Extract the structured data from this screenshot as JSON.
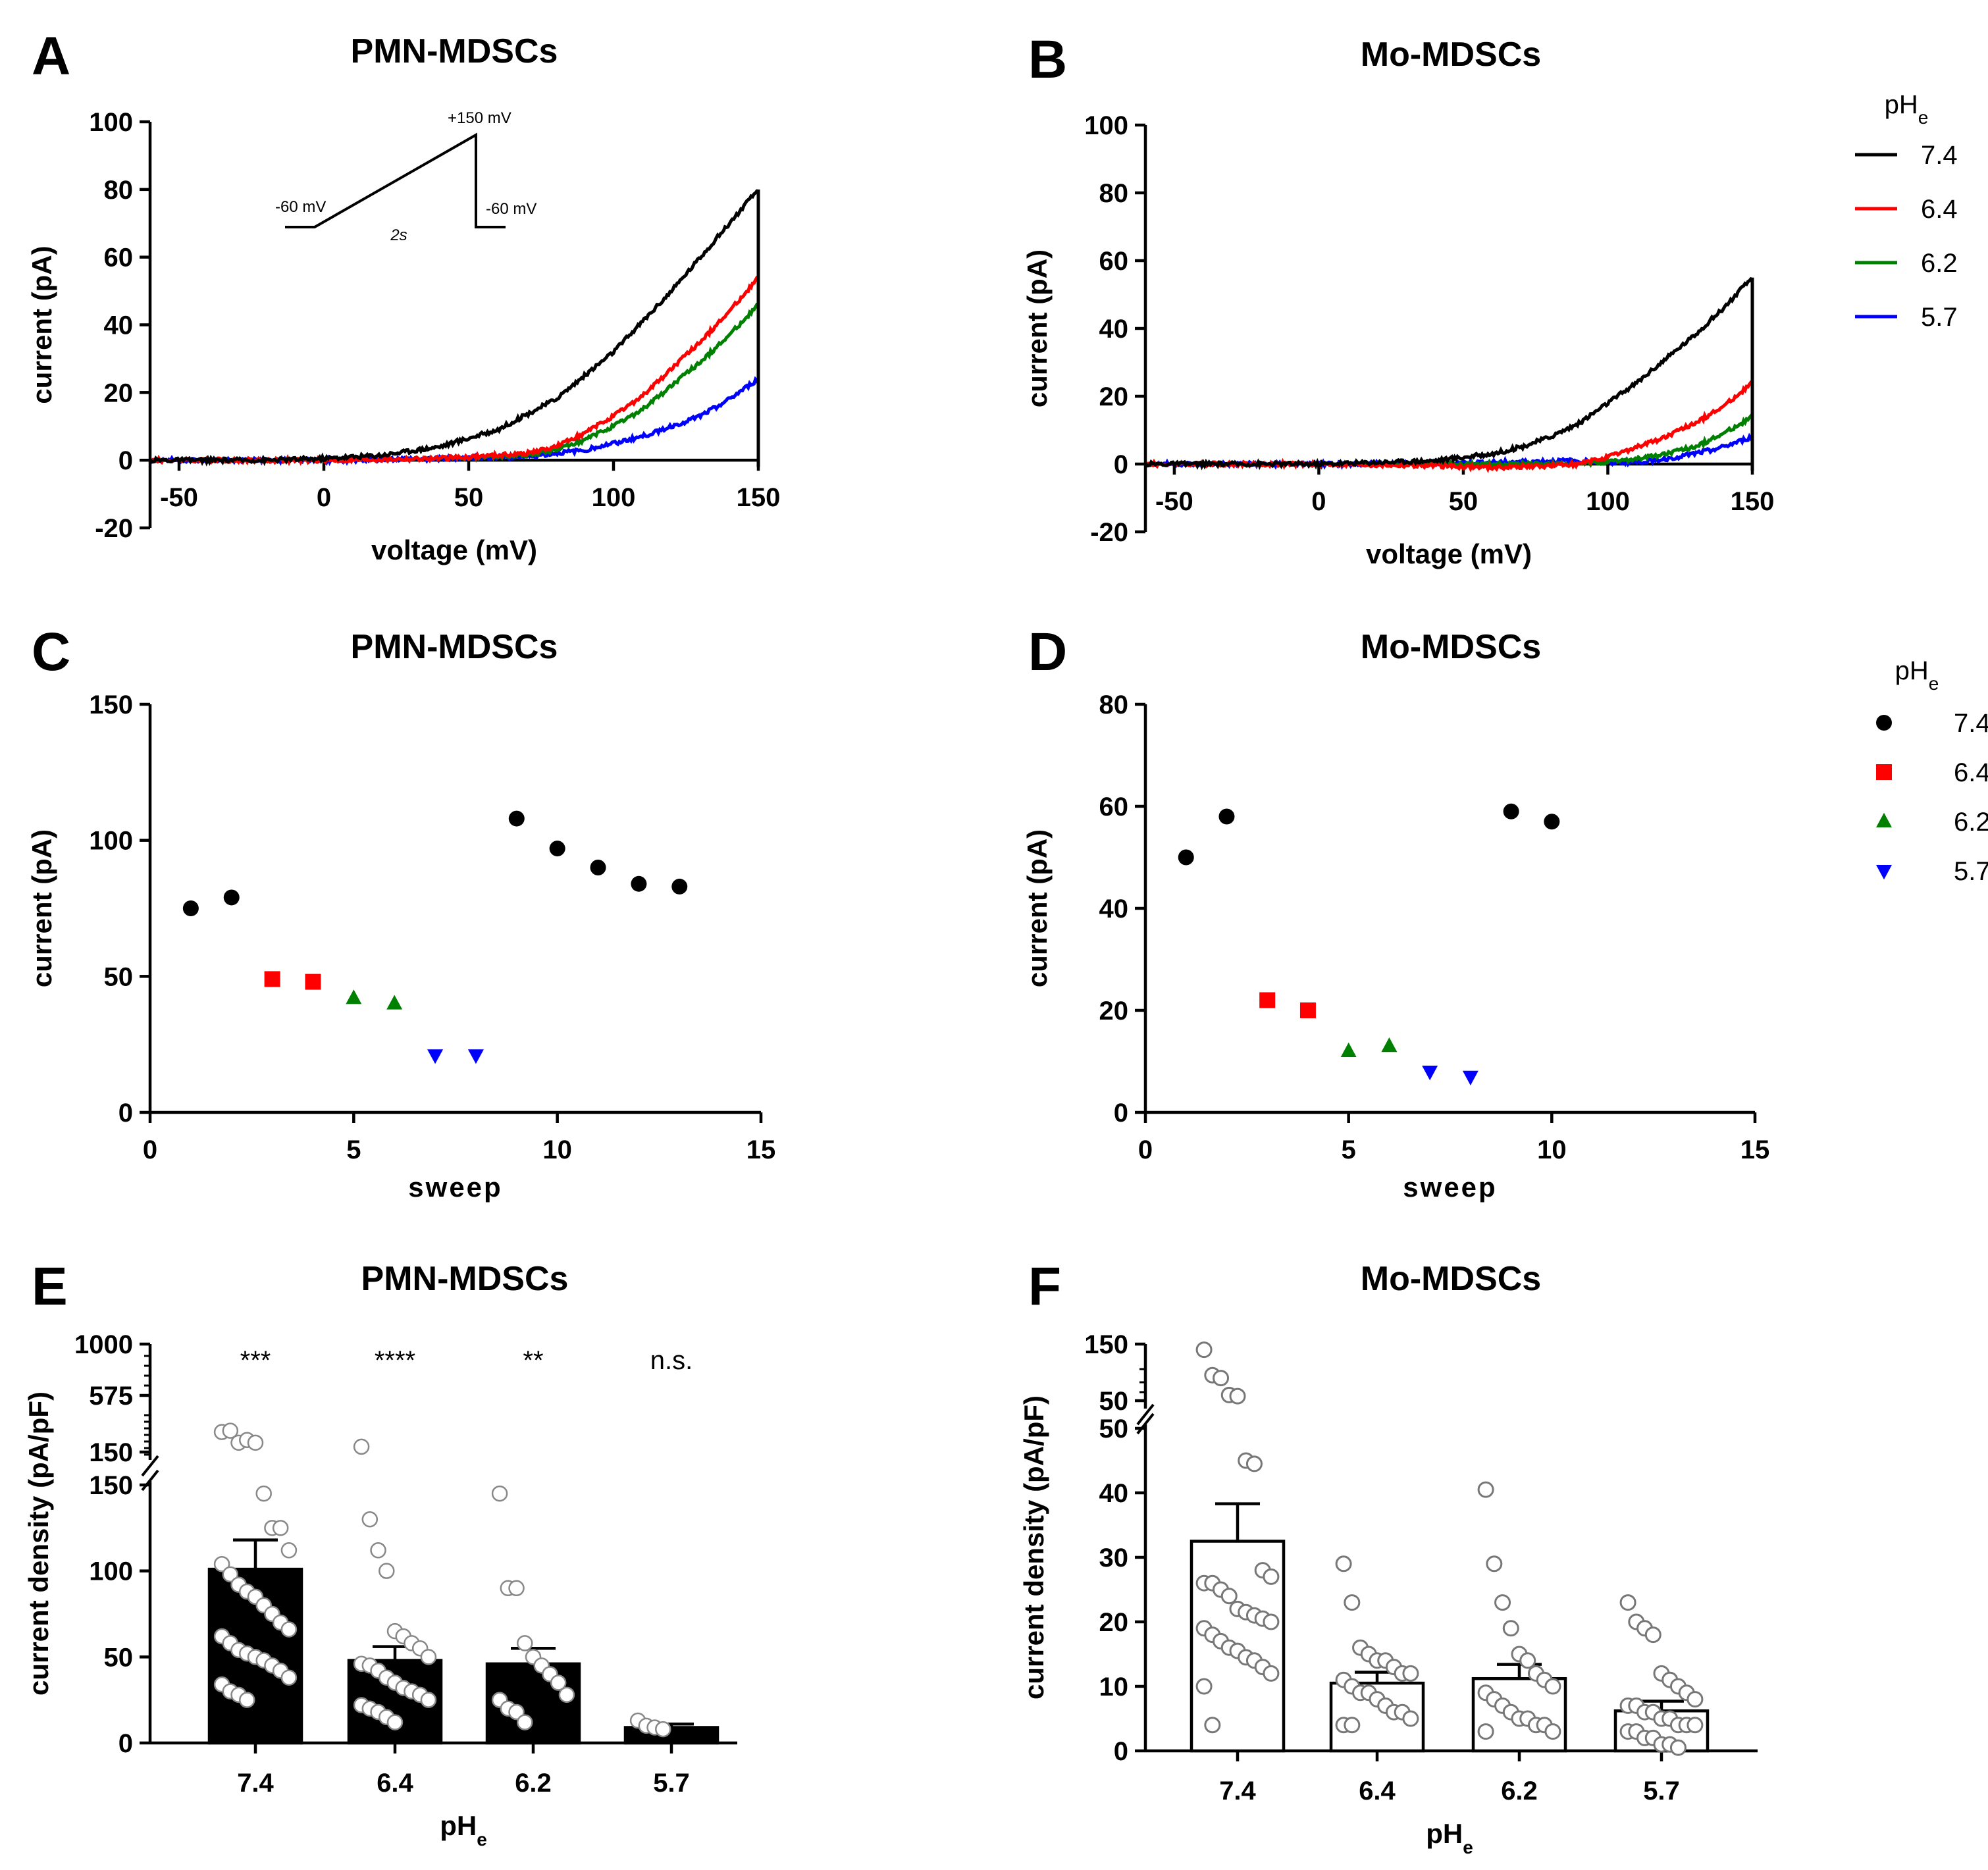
{
  "chart_data": [
    {
      "panel": "A",
      "type": "line",
      "title": "PMN-MDSCs",
      "xlabel": "voltage (mV)",
      "ylabel": "current (pA)",
      "xlim": [
        -60,
        150
      ],
      "ylim": [
        -20,
        100
      ],
      "xticks": [
        "-50",
        "0",
        "50",
        "100",
        "150"
      ],
      "yticks": [
        "-20",
        "0",
        "20",
        "40",
        "60",
        "80",
        "100"
      ],
      "inset": {
        "hold1": "-60 mV",
        "peak": "+150 mV",
        "hold2": "-60 mV",
        "duration": "2s"
      },
      "series": [
        {
          "name": "7.4",
          "color": "#000000",
          "x": [
            -60,
            -20,
            0,
            20,
            40,
            60,
            80,
            100,
            120,
            140,
            150
          ],
          "y": [
            0,
            0,
            0.5,
            1.5,
            4,
            9,
            18,
            32,
            50,
            70,
            80
          ]
        },
        {
          "name": "6.4",
          "color": "#ff0000",
          "x": [
            -60,
            0,
            40,
            70,
            80,
            90,
            100,
            110,
            120,
            130,
            140,
            150
          ],
          "y": [
            0,
            0,
            0.5,
            2,
            4,
            8,
            13,
            19,
            27,
            35,
            44,
            54
          ]
        },
        {
          "name": "6.2",
          "color": "#008000",
          "x": [
            -60,
            0,
            40,
            70,
            80,
            90,
            100,
            110,
            120,
            130,
            140,
            150
          ],
          "y": [
            0,
            0,
            0.5,
            1.5,
            3,
            6,
            10,
            15,
            22,
            29,
            37,
            46
          ]
        },
        {
          "name": "5.7",
          "color": "#0000ff",
          "x": [
            -60,
            0,
            40,
            70,
            80,
            90,
            100,
            110,
            120,
            130,
            140,
            150
          ],
          "y": [
            0,
            0,
            0.5,
            1,
            2,
            3,
            5,
            7,
            10,
            13,
            18,
            24
          ]
        }
      ]
    },
    {
      "panel": "B",
      "type": "line",
      "title": "Mo-MDSCs",
      "xlabel": "voltage (mV)",
      "ylabel": "current (pA)",
      "xlim": [
        -60,
        150
      ],
      "ylim": [
        -20,
        100
      ],
      "xticks": [
        "-50",
        "0",
        "50",
        "100",
        "150"
      ],
      "yticks": [
        "-20",
        "0",
        "20",
        "40",
        "60",
        "80",
        "100"
      ],
      "series": [
        {
          "name": "7.4",
          "color": "#000000",
          "x": [
            -60,
            0,
            20,
            40,
            50,
            60,
            70,
            80,
            90,
            100,
            110,
            120,
            130,
            140,
            150
          ],
          "y": [
            0,
            0,
            0.5,
            1,
            2,
            3,
            5,
            8,
            12,
            18,
            24,
            31,
            38,
            46,
            55
          ]
        },
        {
          "name": "6.4",
          "color": "#ff0000",
          "x": [
            -60,
            0,
            40,
            60,
            80,
            90,
            100,
            110,
            120,
            130,
            140,
            150
          ],
          "y": [
            0,
            0,
            -0.5,
            -1,
            -0.5,
            0,
            2,
            5,
            8,
            12,
            17,
            24
          ]
        },
        {
          "name": "6.2",
          "color": "#008000",
          "x": [
            -60,
            0,
            60,
            90,
            100,
            110,
            120,
            130,
            140,
            150
          ],
          "y": [
            0,
            0,
            0,
            0,
            0.5,
            1.5,
            3,
            5,
            9,
            14
          ]
        },
        {
          "name": "5.7",
          "color": "#0000ff",
          "x": [
            -60,
            0,
            60,
            90,
            100,
            110,
            120,
            130,
            140,
            150
          ],
          "y": [
            0,
            0,
            0.5,
            1,
            0.5,
            0.5,
            1.5,
            3,
            5,
            8
          ]
        }
      ]
    },
    {
      "panel": "C",
      "type": "scatter",
      "title": "PMN-MDSCs",
      "xlabel": "sweep",
      "ylabel": "current (pA)",
      "xlim": [
        0,
        15
      ],
      "ylim": [
        0,
        150
      ],
      "xticks": [
        "0",
        "5",
        "10",
        "15"
      ],
      "yticks": [
        "0",
        "50",
        "100",
        "150"
      ],
      "series": [
        {
          "name": "7.4",
          "marker": "circle",
          "color": "#000000",
          "x": [
            1,
            2,
            9,
            10,
            11,
            12,
            13
          ],
          "y": [
            75,
            79,
            108,
            97,
            90,
            84,
            83
          ]
        },
        {
          "name": "6.4",
          "marker": "square",
          "color": "#ff0000",
          "x": [
            3,
            4
          ],
          "y": [
            49,
            48
          ]
        },
        {
          "name": "6.2",
          "marker": "triangle-up",
          "color": "#008000",
          "x": [
            5,
            6
          ],
          "y": [
            42,
            40
          ]
        },
        {
          "name": "5.7",
          "marker": "triangle-down",
          "color": "#0000ff",
          "x": [
            7,
            8
          ],
          "y": [
            21,
            21
          ]
        }
      ]
    },
    {
      "panel": "D",
      "type": "scatter",
      "title": "Mo-MDSCs",
      "xlabel": "sweep",
      "ylabel": "current (pA)",
      "xlim": [
        0,
        15
      ],
      "ylim": [
        0,
        80
      ],
      "xticks": [
        "0",
        "5",
        "10",
        "15"
      ],
      "yticks": [
        "0",
        "20",
        "40",
        "60",
        "80"
      ],
      "series": [
        {
          "name": "7.4",
          "marker": "circle",
          "color": "#000000",
          "x": [
            1,
            2,
            9,
            10
          ],
          "y": [
            50,
            58,
            59,
            57
          ]
        },
        {
          "name": "6.4",
          "marker": "square",
          "color": "#ff0000",
          "x": [
            3,
            4
          ],
          "y": [
            22,
            20
          ]
        },
        {
          "name": "6.2",
          "marker": "triangle-up",
          "color": "#008000",
          "x": [
            5,
            6
          ],
          "y": [
            12,
            13
          ]
        },
        {
          "name": "5.7",
          "marker": "triangle-down",
          "color": "#0000ff",
          "x": [
            7,
            8
          ],
          "y": [
            8,
            7
          ]
        }
      ]
    },
    {
      "panel": "E",
      "type": "bar",
      "title": "PMN-MDSCs",
      "xlabel": "pHe",
      "ylabel": "current density (pA/pF)",
      "categories": [
        "7.4",
        "6.4",
        "6.2",
        "5.7"
      ],
      "values": [
        101,
        48,
        46,
        9
      ],
      "sem": [
        17,
        8,
        9,
        2
      ],
      "bar_fill": "#000000",
      "significance": [
        "***",
        "****",
        "**",
        "n.s."
      ],
      "axis_break": {
        "lower_max": 150,
        "upper_min": 150,
        "upper_max": 1000
      },
      "yticks_lower": [
        "0",
        "50",
        "100",
        "150"
      ],
      "yticks_upper": [
        "150",
        "575",
        "1000"
      ],
      "points": [
        [
          300,
          310,
          220,
          240,
          220,
          145,
          125,
          125,
          112,
          104,
          98,
          92,
          88,
          85,
          80,
          75,
          70,
          66,
          62,
          58,
          54,
          52,
          50,
          48,
          45,
          42,
          38,
          34,
          30,
          28,
          25
        ],
        [
          190,
          130,
          112,
          100,
          65,
          62,
          58,
          55,
          50,
          46,
          45,
          42,
          38,
          35,
          32,
          30,
          28,
          25,
          22,
          20,
          18,
          15,
          12
        ],
        [
          145,
          90,
          90,
          58,
          50,
          45,
          40,
          35,
          28,
          25,
          20,
          18,
          12
        ],
        [
          13,
          10,
          9,
          8
        ]
      ]
    },
    {
      "panel": "F",
      "type": "bar",
      "title": "Mo-MDSCs",
      "xlabel": "pHe",
      "ylabel": "current density (pA/pF)",
      "categories": [
        "7.4",
        "6.4",
        "6.2",
        "5.7"
      ],
      "values": [
        32.5,
        10.5,
        11.2,
        6.2
      ],
      "sem": [
        5.8,
        1.7,
        2.2,
        1.5
      ],
      "bar_fill": "#ffffff",
      "axis_break": {
        "lower_max": 50,
        "upper_min": 50,
        "upper_max": 150
      },
      "yticks_lower": [
        "0",
        "10",
        "20",
        "30",
        "40",
        "50"
      ],
      "yticks_upper": [
        "50",
        "150"
      ],
      "points": [
        [
          140,
          95,
          90,
          60,
          58,
          45,
          44.5,
          28,
          27,
          26,
          26,
          25,
          24,
          22,
          21.5,
          21,
          20.5,
          20,
          19,
          18,
          17,
          16,
          15.5,
          14.5,
          14,
          13,
          12,
          10,
          4
        ],
        [
          29,
          23,
          16,
          15,
          14,
          14,
          13,
          12,
          12,
          11,
          10,
          9,
          9,
          8,
          7,
          6,
          6,
          5,
          4,
          4
        ],
        [
          40.5,
          29,
          23,
          19,
          15,
          14,
          12,
          11,
          10,
          9,
          8,
          7,
          6,
          5,
          5,
          4,
          4,
          3,
          3
        ],
        [
          23,
          20,
          19,
          18,
          12,
          11,
          10,
          9,
          8,
          7,
          7,
          6,
          6,
          5,
          5,
          4,
          4,
          4,
          3,
          3,
          2,
          2,
          1,
          1,
          0.5
        ]
      ]
    }
  ],
  "legend_top": {
    "title": "pH",
    "sub": "e",
    "items": [
      {
        "label": "7.4",
        "color": "#000000"
      },
      {
        "label": "6.4",
        "color": "#ff0000"
      },
      {
        "label": "6.2",
        "color": "#008000"
      },
      {
        "label": "5.7",
        "color": "#0000ff"
      }
    ]
  },
  "legend_mid": {
    "title": "pH",
    "sub": "e",
    "items": [
      {
        "label": "7.4",
        "color": "#000000",
        "marker": "circle"
      },
      {
        "label": "6.4",
        "color": "#ff0000",
        "marker": "square"
      },
      {
        "label": "6.2",
        "color": "#008000",
        "marker": "triangle-up"
      },
      {
        "label": "5.7",
        "color": "#0000ff",
        "marker": "triangle-down"
      }
    ]
  }
}
